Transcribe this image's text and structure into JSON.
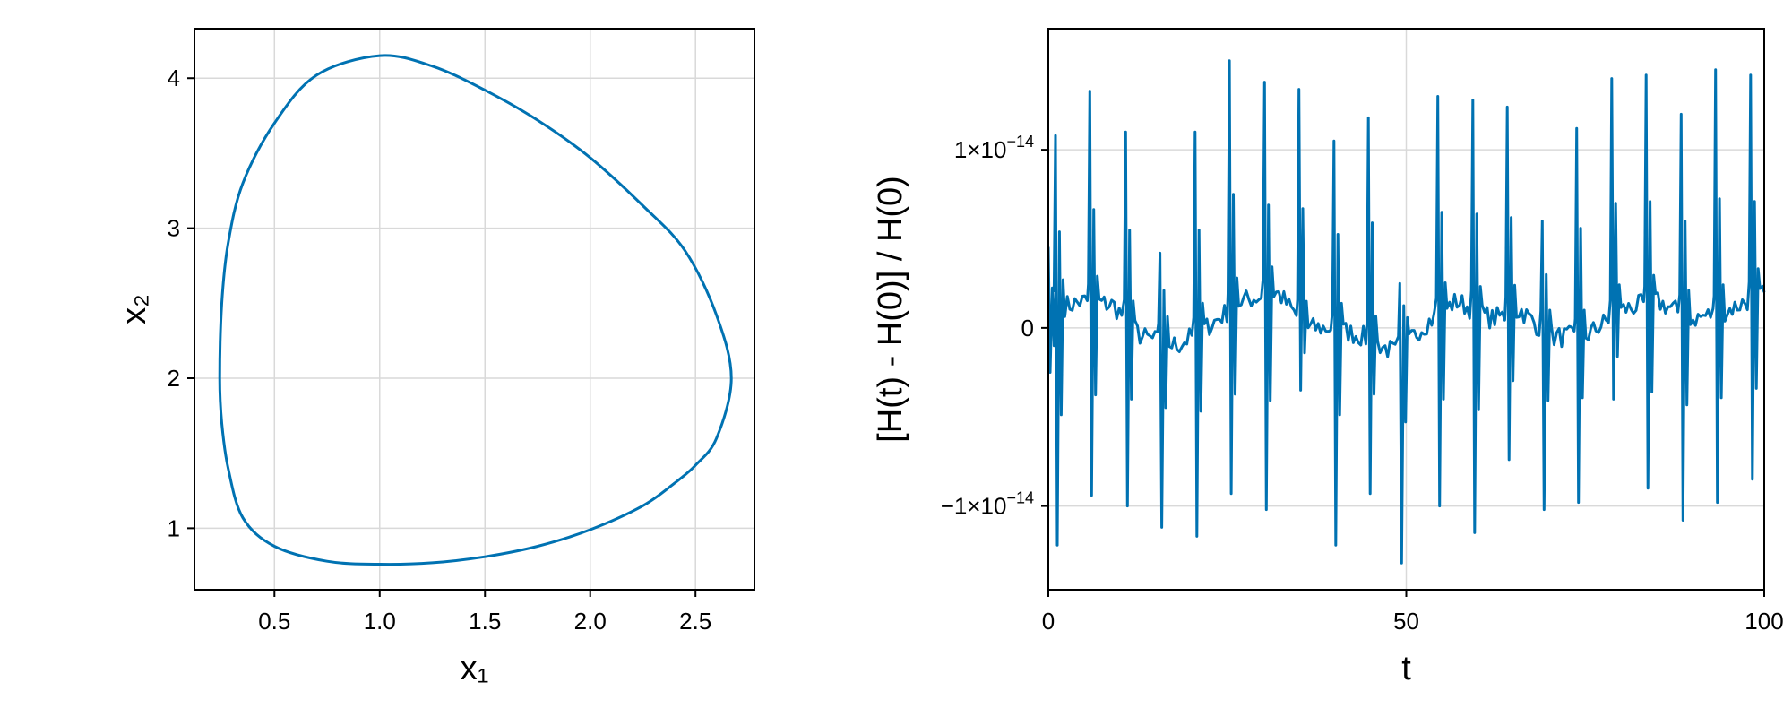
{
  "colors": {
    "series": "#0072b2",
    "grid": "#d9d9d9",
    "frame": "#000000"
  },
  "chart_data": [
    {
      "type": "line",
      "title": "",
      "xlabel": "x₁",
      "ylabel": "x₂",
      "xlim": [
        0.12,
        2.78
      ],
      "ylim": [
        0.59,
        4.33
      ],
      "xticks": [
        0.5,
        1.0,
        1.5,
        2.0,
        2.5
      ],
      "xtick_labels": [
        "0.5",
        "1.0",
        "1.5",
        "2.0",
        "2.5"
      ],
      "yticks": [
        1,
        2,
        3,
        4
      ],
      "ytick_labels": [
        "1",
        "2",
        "3",
        "4"
      ],
      "grid": true,
      "series": [
        {
          "x": [
            2.67,
            2.6,
            2.5,
            2.4,
            2.25,
            2.0,
            1.75,
            1.5,
            1.25,
            1.0,
            0.75,
            0.5,
            0.35,
            0.28,
            0.25,
            0.24,
            0.25,
            0.28,
            0.35,
            0.5,
            0.7,
            1.0,
            1.25,
            1.5,
            1.75,
            2.0,
            2.25,
            2.45,
            2.6,
            2.67
          ],
          "y": [
            2.0,
            1.6,
            1.42,
            1.3,
            1.15,
            0.99,
            0.88,
            0.81,
            0.77,
            0.76,
            0.78,
            0.88,
            1.07,
            1.4,
            1.7,
            2.0,
            2.5,
            2.9,
            3.3,
            3.7,
            4.02,
            4.15,
            4.08,
            3.92,
            3.72,
            3.47,
            3.15,
            2.85,
            2.42,
            2.0
          ]
        }
      ]
    },
    {
      "type": "line",
      "title": "",
      "xlabel": "t",
      "ylabel": "[H(t) - H(0)] / H(0)",
      "xlim": [
        0,
        100
      ],
      "ylim": [
        -1.47e-14,
        1.68e-14
      ],
      "xticks": [
        0,
        50,
        100
      ],
      "xtick_labels": [
        "0",
        "50",
        "100"
      ],
      "yticks": [
        -1e-14,
        0,
        1e-14
      ],
      "ytick_labels": [
        {
          "mant": "−1×10",
          "exp": "−14"
        },
        {
          "mant": "0",
          "exp": ""
        },
        {
          "mant": "1×10",
          "exp": "−14"
        }
      ],
      "grid": true,
      "series": [
        {
          "spikes": [
            {
              "t": 0.0,
              "up": 4.5e-15,
              "down": -2.5e-15
            },
            {
              "t": 1.0,
              "up": 1.08e-14,
              "down": -1.22e-14
            },
            {
              "t": 5.8,
              "up": 1.33e-14,
              "down": -9.4e-15
            },
            {
              "t": 10.8,
              "up": 1.1e-14,
              "down": -1e-14
            },
            {
              "t": 15.6,
              "up": 4.2e-15,
              "down": -1.12e-14
            },
            {
              "t": 20.5,
              "up": 1.1e-14,
              "down": -1.17e-14
            },
            {
              "t": 25.3,
              "up": 1.5e-14,
              "down": -9.3e-15
            },
            {
              "t": 30.2,
              "up": 1.38e-14,
              "down": -1.02e-14
            },
            {
              "t": 35.0,
              "up": 1.34e-14,
              "down": -3.5e-15
            },
            {
              "t": 39.9,
              "up": 1.05e-14,
              "down": -1.22e-14
            },
            {
              "t": 44.7,
              "up": 1.18e-14,
              "down": -9.3e-15
            },
            {
              "t": 49.1,
              "up": 2.5e-15,
              "down": -1.32e-14
            },
            {
              "t": 54.4,
              "up": 1.3e-14,
              "down": -1e-14
            },
            {
              "t": 59.3,
              "up": 1.28e-14,
              "down": -1.15e-14
            },
            {
              "t": 64.1,
              "up": 1.24e-14,
              "down": -7.4e-15
            },
            {
              "t": 69.0,
              "up": 6e-15,
              "down": -1.02e-14
            },
            {
              "t": 73.8,
              "up": 1.12e-14,
              "down": -9.8e-15
            },
            {
              "t": 78.7,
              "up": 1.4e-14,
              "down": -4e-15
            },
            {
              "t": 83.5,
              "up": 1.42e-14,
              "down": -9e-15
            },
            {
              "t": 88.4,
              "up": 1.2e-14,
              "down": -1.08e-14
            },
            {
              "t": 93.2,
              "up": 1.45e-14,
              "down": -9.8e-15
            },
            {
              "t": 98.1,
              "up": 1.42e-14,
              "down": -8.5e-15
            }
          ],
          "baseline": [
            [
              0,
              1e-15
            ],
            [
              5,
              1.5e-15
            ],
            [
              9,
              1.3e-15
            ],
            [
              13,
              -5e-16
            ],
            [
              18,
              -1e-15
            ],
            [
              22,
              0.0
            ],
            [
              27,
              1.5e-15
            ],
            [
              32,
              2e-15
            ],
            [
              36,
              0.0
            ],
            [
              40,
              0.0
            ],
            [
              44,
              -5e-16
            ],
            [
              49,
              -1.5e-15
            ],
            [
              52,
              0.0
            ],
            [
              57,
              1.5e-15
            ],
            [
              62,
              5e-16
            ],
            [
              66,
              1e-15
            ],
            [
              70,
              -5e-16
            ],
            [
              75,
              -5e-16
            ],
            [
              80,
              1e-15
            ],
            [
              85,
              1.5e-15
            ],
            [
              90,
              5e-16
            ],
            [
              95,
              1e-15
            ],
            [
              100,
              2e-15
            ]
          ]
        }
      ]
    }
  ]
}
